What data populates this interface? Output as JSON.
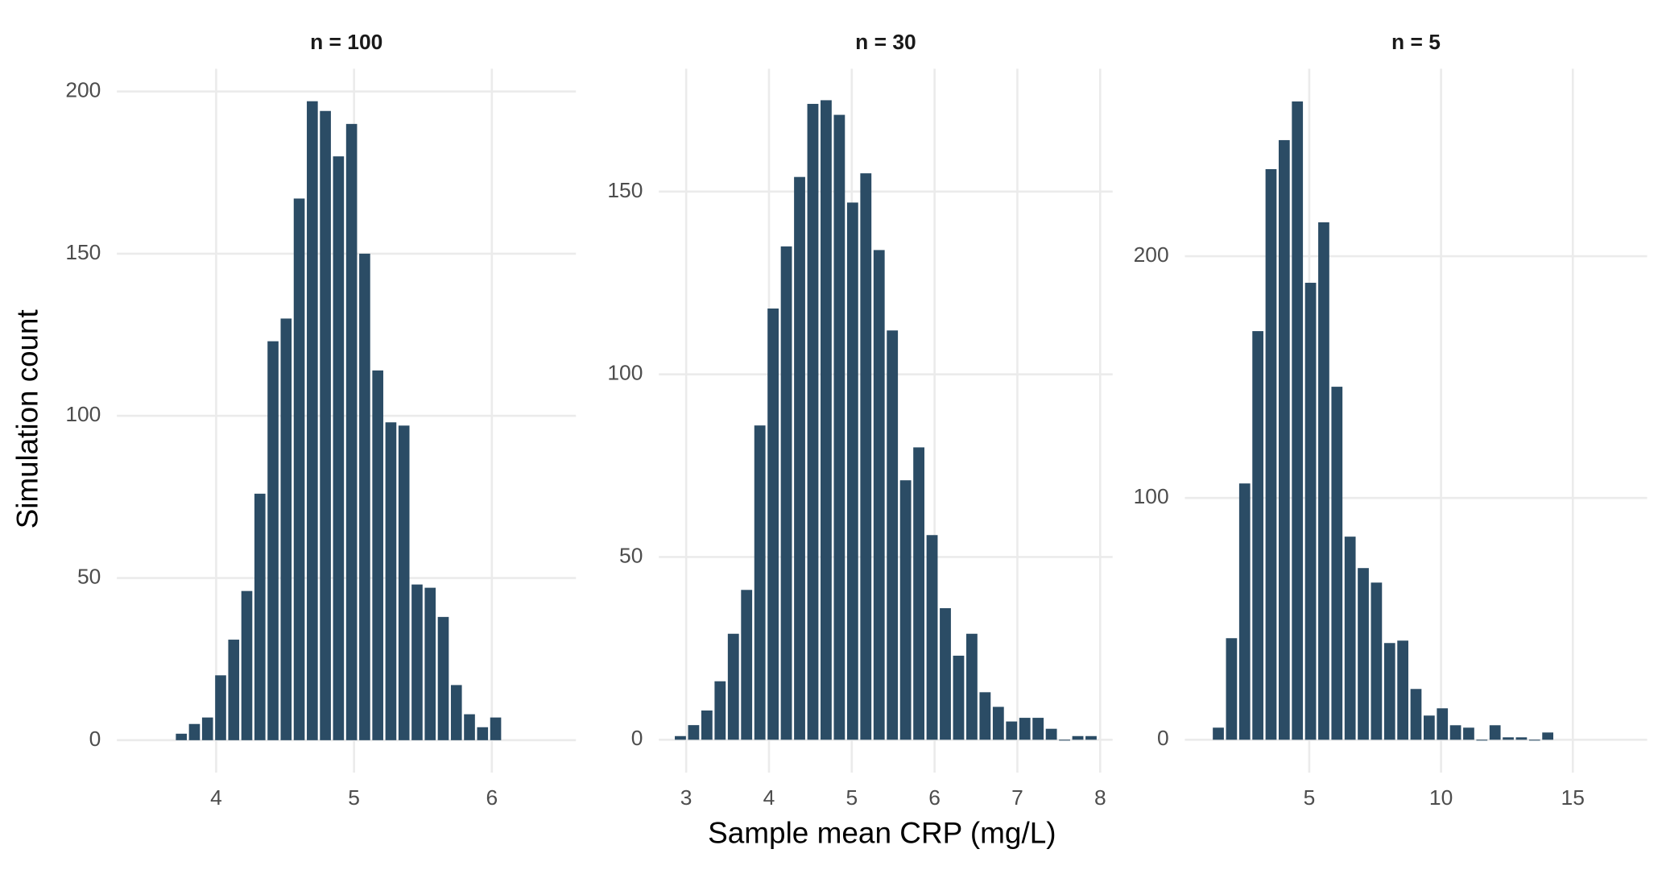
{
  "xlabel": "Sample mean CRP (mg/L)",
  "ylabel": "Simulation count",
  "chart_data": [
    {
      "type": "histogram",
      "title": "n = 100",
      "color": "#2b4c65",
      "grid": true,
      "bins": [
        3.7,
        3.795,
        3.89,
        3.985,
        4.08,
        4.175,
        4.27,
        4.365,
        4.46,
        4.555,
        4.65,
        4.745,
        4.84,
        4.935,
        5.03,
        5.125,
        5.22,
        5.315,
        5.41,
        5.505,
        5.6,
        5.695,
        5.79,
        5.885,
        5.98,
        6.075
      ],
      "values": [
        2,
        5,
        7,
        20,
        31,
        46,
        76,
        123,
        130,
        167,
        197,
        194,
        180,
        190,
        150,
        114,
        98,
        97,
        48,
        47,
        38,
        17,
        8,
        4,
        7
      ],
      "xlim": [
        3.28,
        6.61
      ],
      "ylim": [
        -10,
        207
      ],
      "xticks": [
        4,
        5,
        6
      ],
      "yticks": [
        0,
        50,
        100,
        150,
        200
      ]
    },
    {
      "type": "histogram",
      "title": "n = 30",
      "color": "#2b4c65",
      "grid": true,
      "bins": [
        2.85,
        3.01,
        3.17,
        3.33,
        3.49,
        3.65,
        3.81,
        3.97,
        4.13,
        4.29,
        4.45,
        4.61,
        4.77,
        4.93,
        5.09,
        5.25,
        5.41,
        5.57,
        5.73,
        5.89,
        6.05,
        6.21,
        6.37,
        6.53,
        6.69,
        6.85,
        7.01,
        7.17,
        7.33,
        7.49,
        7.65,
        7.81,
        7.97
      ],
      "values": [
        1,
        4,
        8,
        16,
        29,
        41,
        86,
        118,
        135,
        154,
        174,
        175,
        171,
        147,
        155,
        134,
        112,
        71,
        80,
        56,
        36,
        23,
        29,
        13,
        9,
        5,
        6,
        6,
        3,
        0,
        1,
        1
      ],
      "xlim": [
        2.67,
        8.15
      ],
      "ylim": [
        -9,
        183.6
      ],
      "xticks": [
        3,
        4,
        5,
        6,
        7,
        8
      ],
      "yticks": [
        0,
        50,
        100,
        150
      ]
    },
    {
      "type": "histogram",
      "title": "n = 5",
      "color": "#2b4c65",
      "grid": true,
      "bins": [
        1.3,
        1.8,
        2.3,
        2.8,
        3.3,
        3.8,
        4.3,
        4.8,
        5.3,
        5.8,
        6.3,
        6.8,
        7.3,
        7.8,
        8.3,
        8.8,
        9.3,
        9.8,
        10.3,
        10.8,
        11.3,
        11.8,
        12.3,
        12.8,
        13.3,
        13.8,
        14.3
      ],
      "values": [
        5,
        42,
        106,
        169,
        236,
        248,
        264,
        189,
        214,
        146,
        84,
        71,
        65,
        40,
        41,
        21,
        10,
        13,
        6,
        5,
        0,
        6,
        1,
        1,
        0,
        3
      ],
      "xlim": [
        0.28,
        17.82
      ],
      "ylim": [
        -13.6,
        277.5
      ],
      "xticks": [
        5,
        10,
        15
      ],
      "yticks": [
        0,
        100,
        200
      ]
    }
  ]
}
